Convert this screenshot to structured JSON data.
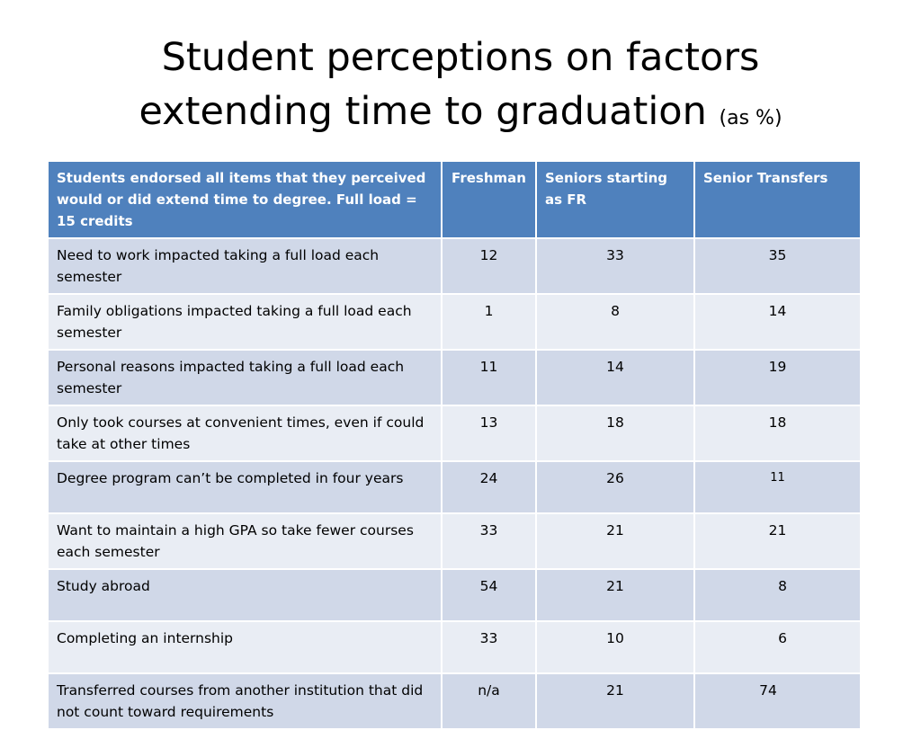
{
  "title": {
    "line1": "Student perceptions on factors",
    "line2": "extending time to graduation",
    "suffix": "(as %)"
  },
  "table": {
    "headers": [
      "Students endorsed all items that they perceived would or did extend time to degree.  Full load = 15 credits",
      "Freshman",
      "Seniors starting as FR",
      "Senior Transfers"
    ],
    "rows": [
      [
        "Need to work impacted taking a full load each semester",
        "12",
        "33",
        "35"
      ],
      [
        "Family obligations impacted taking a full load each semester",
        "1",
        "8",
        "14"
      ],
      [
        "Personal reasons impacted taking a full load each semester",
        "11",
        "14",
        "19"
      ],
      [
        "Only took courses at convenient times, even if could take at other times",
        "13",
        "18",
        "18"
      ],
      [
        "Degree program can’t be completed in four years",
        "24",
        "26",
        "11"
      ],
      [
        "Want to maintain a high GPA so take fewer courses each semester",
        "33",
        "21",
        "21"
      ],
      [
        "Study abroad",
        "54",
        "21",
        "8"
      ],
      [
        "Completing an internship",
        "33",
        "10",
        "6"
      ],
      [
        "Transferred courses from another institution that did not count toward requirements",
        "n/a",
        "21",
        "74"
      ]
    ]
  }
}
